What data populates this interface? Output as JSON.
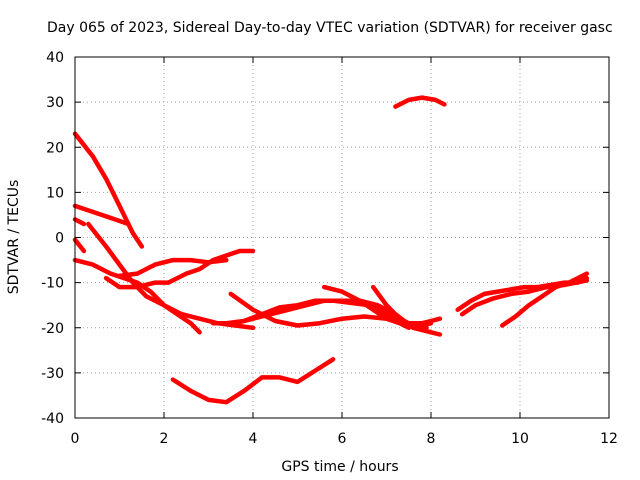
{
  "chart_data": {
    "type": "line",
    "title": "Day 065 of 2023, Sidereal Day-to-day VTEC variation (SDTVAR) for receiver gasc",
    "xlabel": "GPS time / hours",
    "ylabel": "SDTVAR / TECUs",
    "xlim": [
      0,
      12
    ],
    "ylim": [
      -40,
      40
    ],
    "x_ticks": [
      0,
      2,
      4,
      6,
      8,
      10,
      12
    ],
    "y_ticks": [
      -40,
      -30,
      -20,
      -10,
      0,
      10,
      20,
      30,
      40
    ],
    "x_tick_labels": [
      "0",
      "2",
      "4",
      "6",
      "8",
      "10",
      "12"
    ],
    "y_tick_labels": [
      "-40",
      "-30",
      "-20",
      "-10",
      "0",
      "10",
      "20",
      "30",
      "40"
    ],
    "grid": true,
    "legend": "none",
    "series_color": "#ff0000",
    "series": [
      {
        "name": "arc-1",
        "x": [
          0.0,
          0.4,
          0.7,
          1.0,
          1.3,
          1.5
        ],
        "y": [
          23,
          18,
          13,
          7,
          1,
          -2
        ]
      },
      {
        "name": "arc-2",
        "x": [
          0.0,
          0.3,
          0.6,
          0.9,
          1.2
        ],
        "y": [
          7,
          6,
          5,
          4,
          3
        ]
      },
      {
        "name": "arc-3",
        "x": [
          0.0,
          0.2
        ],
        "y": [
          4,
          3
        ]
      },
      {
        "name": "arc-4",
        "x": [
          0.0,
          0.2
        ],
        "y": [
          -0.5,
          -3
        ]
      },
      {
        "name": "arc-5",
        "x": [
          0.3,
          0.7,
          1.0,
          1.3,
          1.6,
          2.0,
          2.4,
          2.8,
          3.2,
          3.6,
          4.0
        ],
        "y": [
          3,
          -2,
          -6,
          -10,
          -13,
          -15,
          -17,
          -18,
          -19,
          -19.5,
          -20
        ]
      },
      {
        "name": "arc-6",
        "x": [
          0.0,
          0.4,
          0.8,
          1.1,
          1.4,
          1.7,
          2.0,
          2.3,
          2.6,
          2.8
        ],
        "y": [
          -5,
          -6,
          -8,
          -9,
          -10,
          -12,
          -15,
          -17,
          -19,
          -21
        ]
      },
      {
        "name": "arc-7",
        "x": [
          0.7,
          1.0,
          1.4,
          1.8,
          2.1,
          2.3,
          2.5,
          2.8,
          3.1,
          3.4,
          3.7,
          4.0
        ],
        "y": [
          -9,
          -11,
          -11,
          -10,
          -10,
          -9,
          -8,
          -7,
          -5,
          -4,
          -3,
          -3
        ]
      },
      {
        "name": "arc-8",
        "x": [
          1.0,
          1.4,
          1.8,
          2.2,
          2.6,
          3.0,
          3.4
        ],
        "y": [
          -8.5,
          -8,
          -6,
          -5,
          -5,
          -5.5,
          -5
        ]
      },
      {
        "name": "arc-9",
        "x": [
          3.1,
          3.6,
          4.0,
          4.4,
          4.8,
          5.2,
          5.6,
          6.0,
          6.4,
          6.8,
          7.2,
          7.6,
          8.0,
          8.2
        ],
        "y": [
          -19,
          -19,
          -18,
          -17,
          -16,
          -15,
          -14,
          -14,
          -14,
          -15,
          -17,
          -20,
          -21,
          -21.5
        ]
      },
      {
        "name": "arc-10",
        "x": [
          3.5,
          4.0,
          4.5,
          5.0,
          5.5,
          6.0,
          6.5,
          7.0,
          7.5,
          7.8,
          8.0,
          8.2
        ],
        "y": [
          -12.5,
          -16,
          -18.5,
          -19.5,
          -19,
          -18,
          -17.5,
          -18,
          -19,
          -19,
          -18.5,
          -18
        ]
      },
      {
        "name": "arc-11",
        "x": [
          3.4,
          3.8,
          4.2,
          4.6,
          5.0,
          5.4,
          5.8,
          6.2,
          6.6,
          7.0,
          7.4,
          7.8,
          8.0
        ],
        "y": [
          -19,
          -18.5,
          -17,
          -15.5,
          -15,
          -14,
          -14,
          -14.5,
          -15,
          -17,
          -19,
          -19.5,
          -19
        ]
      },
      {
        "name": "arc-12",
        "x": [
          5.6,
          6.0,
          6.4,
          6.7,
          7.0,
          7.3,
          7.5
        ],
        "y": [
          -11,
          -12,
          -14,
          -16,
          -18,
          -19,
          -20
        ]
      },
      {
        "name": "arc-13",
        "x": [
          6.7,
          7.0,
          7.3,
          7.6,
          7.9
        ],
        "y": [
          -11,
          -15,
          -18,
          -19.5,
          -20
        ]
      },
      {
        "name": "arc-14",
        "x": [
          2.2,
          2.6,
          3.0,
          3.4,
          3.8,
          4.2,
          4.6,
          5.0,
          5.4,
          5.8
        ],
        "y": [
          -31.5,
          -34,
          -36,
          -36.5,
          -34,
          -31,
          -31,
          -32,
          -29.5,
          -27
        ]
      },
      {
        "name": "arc-15",
        "x": [
          7.2,
          7.5,
          7.8,
          8.1,
          8.3
        ],
        "y": [
          29,
          30.5,
          31,
          30.5,
          29.5
        ]
      },
      {
        "name": "arc-16",
        "x": [
          8.6,
          8.9,
          9.2,
          9.5,
          9.8,
          10.1,
          10.4,
          10.7,
          11.0,
          11.3,
          11.5
        ],
        "y": [
          -16,
          -14,
          -12.5,
          -12,
          -11.5,
          -11,
          -11,
          -10.5,
          -10,
          -10,
          -9
        ]
      },
      {
        "name": "arc-17",
        "x": [
          8.7,
          9.0,
          9.4,
          9.8,
          10.2,
          10.6,
          11.0,
          11.5
        ],
        "y": [
          -17,
          -15,
          -13.5,
          -12.5,
          -12,
          -11,
          -10.5,
          -9.5
        ]
      },
      {
        "name": "arc-18",
        "x": [
          9.6,
          9.9,
          10.2,
          10.5,
          10.8,
          11.1,
          11.3,
          11.5
        ],
        "y": [
          -19.5,
          -17.5,
          -15,
          -13,
          -11,
          -10,
          -9,
          -8
        ]
      }
    ]
  }
}
